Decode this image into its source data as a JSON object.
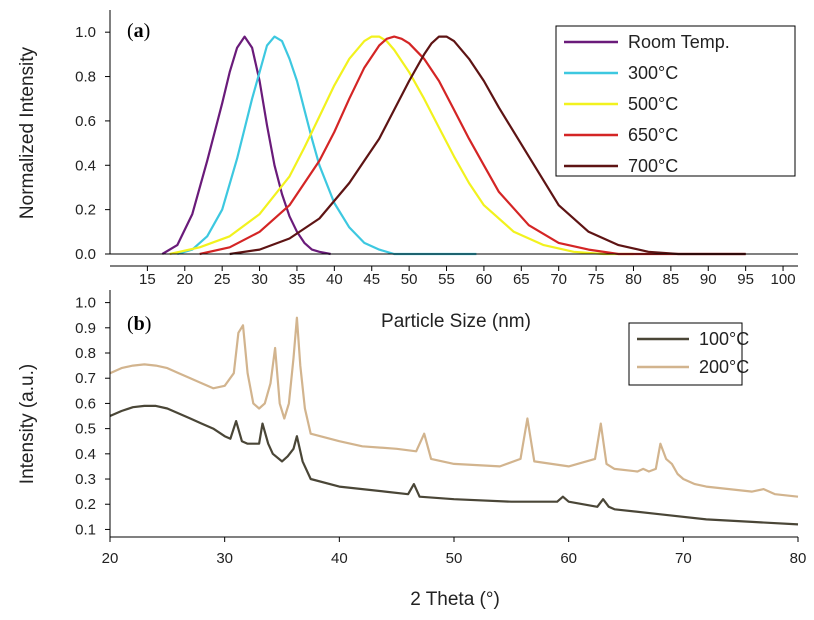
{
  "chart_data": [
    {
      "id": "a",
      "type": "line",
      "panel_label_prefix": "(",
      "panel_label_letter": "a",
      "panel_label_suffix": ")",
      "xlabel": "Particle Size (nm)",
      "ylabel": "Normalized Intensity",
      "xlim": [
        10,
        102
      ],
      "ylim": [
        0,
        1.1
      ],
      "xticks": [
        15,
        20,
        25,
        30,
        35,
        40,
        45,
        50,
        55,
        60,
        65,
        70,
        75,
        80,
        85,
        90,
        95,
        100
      ],
      "yticks": [
        0.0,
        0.2,
        0.4,
        0.6,
        0.8,
        1.0
      ],
      "ytick_labels": [
        "0.0",
        "0.2",
        "0.4",
        "0.6",
        "0.8",
        "1.0"
      ],
      "legend_position": "top-right",
      "series": [
        {
          "name": "Room Temp.",
          "color": "#6a1b7a",
          "x": [
            17,
            19,
            21,
            23,
            25,
            26,
            27,
            28,
            29,
            30,
            31,
            32,
            33,
            34,
            35,
            36,
            37,
            38,
            39.5
          ],
          "y": [
            0.0,
            0.04,
            0.18,
            0.42,
            0.68,
            0.82,
            0.93,
            0.98,
            0.93,
            0.78,
            0.58,
            0.4,
            0.27,
            0.17,
            0.1,
            0.05,
            0.02,
            0.01,
            0.0
          ]
        },
        {
          "name": "300°C",
          "color": "#3dc8e0",
          "x": [
            19,
            21,
            23,
            25,
            27,
            29,
            30,
            31,
            32,
            33,
            34,
            35,
            36,
            37,
            38,
            40,
            42,
            44,
            46,
            48,
            52,
            59
          ],
          "y": [
            0.0,
            0.02,
            0.08,
            0.2,
            0.43,
            0.7,
            0.82,
            0.94,
            0.98,
            0.96,
            0.88,
            0.78,
            0.65,
            0.52,
            0.4,
            0.23,
            0.12,
            0.05,
            0.02,
            0.0,
            0.0,
            0.0
          ]
        },
        {
          "name": "500°C",
          "color": "#f2f21e",
          "x": [
            18,
            22,
            26,
            30,
            34,
            36,
            38,
            40,
            42,
            44,
            45,
            46,
            47,
            48,
            50,
            52,
            54,
            56,
            58,
            60,
            64,
            68,
            72,
            76,
            80
          ],
          "y": [
            0.0,
            0.03,
            0.08,
            0.18,
            0.35,
            0.48,
            0.62,
            0.76,
            0.88,
            0.96,
            0.98,
            0.98,
            0.96,
            0.92,
            0.82,
            0.7,
            0.57,
            0.44,
            0.32,
            0.22,
            0.1,
            0.04,
            0.01,
            0.0,
            0.0
          ]
        },
        {
          "name": "650°C",
          "color": "#d42525",
          "x": [
            22,
            26,
            30,
            34,
            38,
            40,
            42,
            44,
            46,
            47,
            48,
            49,
            50,
            52,
            54,
            56,
            58,
            60,
            62,
            66,
            70,
            74,
            78,
            82,
            95
          ],
          "y": [
            0.0,
            0.03,
            0.1,
            0.22,
            0.42,
            0.55,
            0.7,
            0.84,
            0.94,
            0.97,
            0.98,
            0.97,
            0.95,
            0.88,
            0.78,
            0.65,
            0.52,
            0.4,
            0.28,
            0.13,
            0.05,
            0.02,
            0.0,
            0.0,
            0.0
          ]
        },
        {
          "name": "700°C",
          "color": "#5e1414",
          "x": [
            26,
            30,
            34,
            38,
            42,
            44,
            46,
            48,
            50,
            52,
            53,
            54,
            55,
            56,
            58,
            60,
            62,
            66,
            70,
            74,
            78,
            82,
            86,
            90,
            95
          ],
          "y": [
            0.0,
            0.02,
            0.07,
            0.16,
            0.32,
            0.42,
            0.52,
            0.65,
            0.78,
            0.9,
            0.95,
            0.98,
            0.98,
            0.96,
            0.88,
            0.78,
            0.66,
            0.44,
            0.22,
            0.1,
            0.04,
            0.01,
            0.0,
            0.0,
            0.0
          ]
        }
      ]
    },
    {
      "id": "b",
      "type": "line",
      "panel_label_prefix": "(",
      "panel_label_letter": "b",
      "panel_label_suffix": ")",
      "xlabel": "2 Theta (°)",
      "ylabel": "Intensity (a.u.)",
      "xlim": [
        20,
        80
      ],
      "ylim": [
        0.07,
        1.05
      ],
      "xticks": [
        20,
        30,
        40,
        50,
        60,
        70,
        80
      ],
      "yticks": [
        0.1,
        0.2,
        0.3,
        0.4,
        0.5,
        0.6,
        0.7,
        0.8,
        0.9,
        1.0
      ],
      "ytick_labels": [
        "0.1",
        "0.2",
        "0.3",
        "0.4",
        "0.5",
        "0.6",
        "0.7",
        "0.8",
        "0.9",
        "1.0"
      ],
      "legend_position": "top-right",
      "series": [
        {
          "name": "100°C",
          "color": "#4a4637",
          "x": [
            20,
            21,
            22,
            23,
            24,
            25,
            26,
            27,
            28,
            29,
            30,
            30.5,
            31,
            31.5,
            32,
            33,
            33.3,
            33.8,
            34.2,
            35,
            35.5,
            36,
            36.3,
            36.8,
            37.5,
            40,
            44,
            46,
            46.5,
            47,
            50,
            55,
            59,
            59.5,
            60,
            62.5,
            63,
            63.5,
            64,
            68,
            72,
            76,
            80
          ],
          "y": [
            0.55,
            0.57,
            0.585,
            0.59,
            0.59,
            0.58,
            0.56,
            0.54,
            0.52,
            0.5,
            0.47,
            0.46,
            0.53,
            0.45,
            0.44,
            0.44,
            0.52,
            0.44,
            0.4,
            0.37,
            0.39,
            0.42,
            0.47,
            0.37,
            0.3,
            0.27,
            0.25,
            0.24,
            0.28,
            0.23,
            0.22,
            0.21,
            0.21,
            0.23,
            0.21,
            0.19,
            0.22,
            0.19,
            0.18,
            0.16,
            0.14,
            0.13,
            0.12
          ]
        },
        {
          "name": "200°C",
          "color": "#d2b48e",
          "x": [
            20,
            21,
            22,
            23,
            24,
            25,
            26,
            27,
            28,
            29,
            30,
            30.8,
            31.2,
            31.6,
            32,
            32.5,
            33,
            33.5,
            34,
            34.4,
            34.8,
            35.2,
            35.6,
            36,
            36.3,
            36.6,
            37,
            37.5,
            40,
            42,
            45,
            46.7,
            47.4,
            48,
            50,
            54,
            55.8,
            56.4,
            57,
            60,
            62.3,
            62.8,
            63.3,
            64,
            66,
            66.5,
            67,
            67.6,
            68,
            68.5,
            69,
            69.5,
            70,
            71,
            72,
            74,
            76,
            77,
            78,
            80
          ],
          "y": [
            0.72,
            0.74,
            0.75,
            0.755,
            0.75,
            0.74,
            0.72,
            0.7,
            0.68,
            0.66,
            0.67,
            0.72,
            0.88,
            0.91,
            0.72,
            0.6,
            0.58,
            0.6,
            0.68,
            0.82,
            0.6,
            0.54,
            0.6,
            0.78,
            0.94,
            0.75,
            0.58,
            0.48,
            0.45,
            0.43,
            0.42,
            0.41,
            0.48,
            0.38,
            0.36,
            0.35,
            0.38,
            0.54,
            0.37,
            0.35,
            0.38,
            0.52,
            0.36,
            0.34,
            0.33,
            0.34,
            0.33,
            0.34,
            0.44,
            0.38,
            0.36,
            0.32,
            0.3,
            0.28,
            0.27,
            0.26,
            0.25,
            0.26,
            0.24,
            0.23
          ]
        }
      ]
    }
  ]
}
